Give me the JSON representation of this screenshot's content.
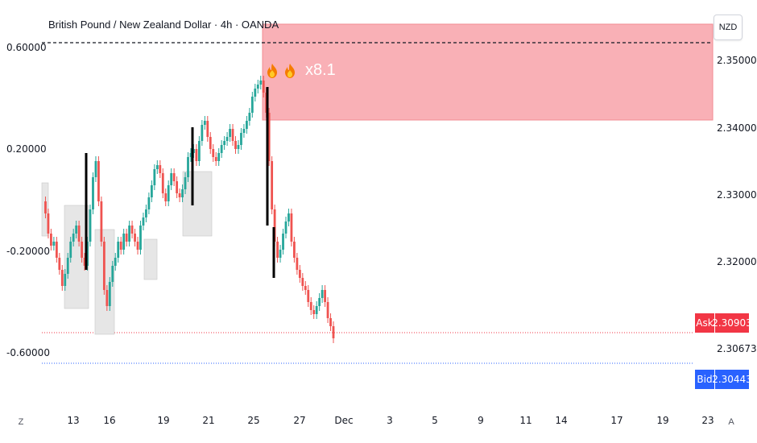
{
  "header": {
    "title": "British Pound / New Zealand Dollar · 4h · OANDA",
    "currency": "NZD"
  },
  "left_axis": {
    "ticks": [
      "0.60000",
      "0.20000",
      "-0.20000",
      "-0.60000"
    ]
  },
  "right_axis": {
    "ticks": [
      "2.35000",
      "2.34000",
      "2.33000",
      "2.32000",
      "2.30673"
    ]
  },
  "badges": {
    "ask_label": "Ask",
    "ask_value": "2.30903",
    "bid_label": "Bid",
    "bid_value": "2.30443"
  },
  "annotation": {
    "text": "x8.1",
    "icon": "fire-icon"
  },
  "x_axis": {
    "labels": [
      "13",
      "16",
      "19",
      "21",
      "25",
      "27",
      "Dec",
      "3",
      "5",
      "9",
      "11",
      "14",
      "17",
      "19",
      "23"
    ]
  },
  "controls": {
    "left_corner": "Z",
    "right_corner": "A"
  },
  "colors": {
    "up": "#26a69a",
    "down": "#ef5350",
    "zone": "#f7a1a8",
    "ask": "#f23645",
    "bid": "#2962ff"
  }
}
